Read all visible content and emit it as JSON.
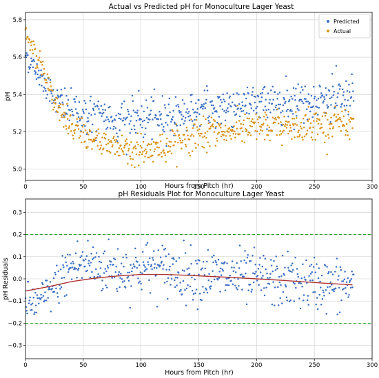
{
  "chart_data": [
    {
      "type": "scatter",
      "title": "Actual vs Predicted pH for Monoculture Lager Yeast",
      "xlabel": "Hours from Pitch (hr)",
      "ylabel": "pH",
      "xlim": [
        0,
        300
      ],
      "ylim": [
        4.94,
        5.84
      ],
      "xticks": [
        "0",
        "50",
        "100",
        "150",
        "200",
        "250",
        "300"
      ],
      "yticks": [
        "5.0",
        "5.2",
        "5.4",
        "5.6",
        "5.8"
      ],
      "grid": true,
      "legend_position": "top-right",
      "series": [
        {
          "name": "Predicted",
          "color": "#3a6fc4",
          "x": [
            0,
            6,
            12,
            18,
            24,
            30,
            36,
            42,
            48,
            54,
            60,
            66,
            72,
            78,
            84,
            90,
            96,
            102,
            108,
            114,
            120,
            126,
            132,
            138,
            144,
            150,
            156,
            162,
            168,
            174,
            180,
            186,
            192,
            198,
            204,
            210,
            216,
            222,
            228,
            234,
            240,
            246,
            252,
            258,
            264,
            270,
            276,
            282
          ],
          "y": [
            5.62,
            5.55,
            5.51,
            5.45,
            5.4,
            5.35,
            5.33,
            5.31,
            5.3,
            5.29,
            5.28,
            5.28,
            5.27,
            5.27,
            5.27,
            5.27,
            5.27,
            5.27,
            5.27,
            5.28,
            5.28,
            5.29,
            5.29,
            5.3,
            5.31,
            5.32,
            5.32,
            5.33,
            5.33,
            5.34,
            5.34,
            5.35,
            5.35,
            5.35,
            5.36,
            5.36,
            5.36,
            5.36,
            5.37,
            5.37,
            5.37,
            5.37,
            5.37,
            5.37,
            5.38,
            5.38,
            5.38,
            5.38
          ]
        },
        {
          "name": "Actual",
          "color": "#d99214",
          "x": [
            0,
            6,
            12,
            18,
            24,
            30,
            36,
            42,
            48,
            54,
            60,
            66,
            72,
            78,
            84,
            90,
            96,
            102,
            108,
            114,
            120,
            126,
            132,
            138,
            144,
            150,
            156,
            162,
            168,
            174,
            180,
            186,
            192,
            198,
            204,
            210,
            216,
            222,
            228,
            234,
            240,
            246,
            252,
            258,
            264,
            270,
            276,
            282
          ],
          "y": [
            5.72,
            5.66,
            5.58,
            5.48,
            5.38,
            5.3,
            5.25,
            5.21,
            5.19,
            5.17,
            5.16,
            5.15,
            5.14,
            5.13,
            5.12,
            5.11,
            5.1,
            5.1,
            5.1,
            5.11,
            5.12,
            5.14,
            5.15,
            5.17,
            5.18,
            5.19,
            5.19,
            5.2,
            5.2,
            5.2,
            5.21,
            5.21,
            5.21,
            5.22,
            5.22,
            5.22,
            5.22,
            5.23,
            5.23,
            5.23,
            5.23,
            5.24,
            5.24,
            5.24,
            5.24,
            5.25,
            5.25,
            5.25
          ]
        }
      ]
    },
    {
      "type": "scatter",
      "title": "pH Residuals Plot for Monoculture Lager Yeast",
      "xlabel": "Hours from Pitch (hr)",
      "ylabel": "pH Residuals",
      "xlim": [
        0,
        300
      ],
      "ylim": [
        -0.36,
        0.36
      ],
      "xticks": [
        "0",
        "50",
        "100",
        "150",
        "200",
        "250",
        "300"
      ],
      "yticks": [
        "−0.3",
        "−0.2",
        "−0.1",
        "0.0",
        "0.1",
        "0.2",
        "0.3"
      ],
      "grid": true,
      "reference_lines": [
        0.2,
        -0.2
      ],
      "series": [
        {
          "name": "",
          "color": "#3a6fc4",
          "x": [
            0,
            6,
            12,
            18,
            24,
            30,
            36,
            42,
            48,
            54,
            60,
            66,
            72,
            78,
            84,
            90,
            96,
            102,
            108,
            114,
            120,
            126,
            132,
            138,
            144,
            150,
            156,
            162,
            168,
            174,
            180,
            186,
            192,
            198,
            204,
            210,
            216,
            222,
            228,
            234,
            240,
            246,
            252,
            258,
            264,
            270,
            276,
            282
          ],
          "y": [
            -0.1,
            -0.11,
            -0.1,
            -0.08,
            -0.04,
            -0.01,
            0.04,
            0.06,
            0.07,
            0.07,
            0.06,
            0.05,
            0.05,
            0.04,
            0.04,
            0.04,
            0.05,
            0.05,
            0.05,
            0.05,
            0.04,
            0.04,
            0.03,
            0.03,
            0.02,
            0.02,
            0.02,
            0.02,
            0.01,
            0.01,
            0.01,
            0.01,
            0.0,
            0.0,
            0.0,
            0.0,
            -0.01,
            -0.01,
            -0.01,
            -0.01,
            -0.02,
            -0.02,
            -0.02,
            -0.02,
            -0.03,
            -0.03,
            -0.03,
            -0.03
          ]
        },
        {
          "name": "",
          "color": "#b03030",
          "x": [
            0,
            20,
            40,
            60,
            80,
            100,
            120,
            140,
            160,
            180,
            200,
            220,
            240,
            260,
            283
          ],
          "y": [
            -0.055,
            -0.035,
            -0.012,
            0.003,
            0.013,
            0.02,
            0.02,
            0.016,
            0.011,
            0.006,
            0.0,
            -0.006,
            -0.013,
            -0.02,
            -0.027
          ]
        }
      ]
    }
  ]
}
